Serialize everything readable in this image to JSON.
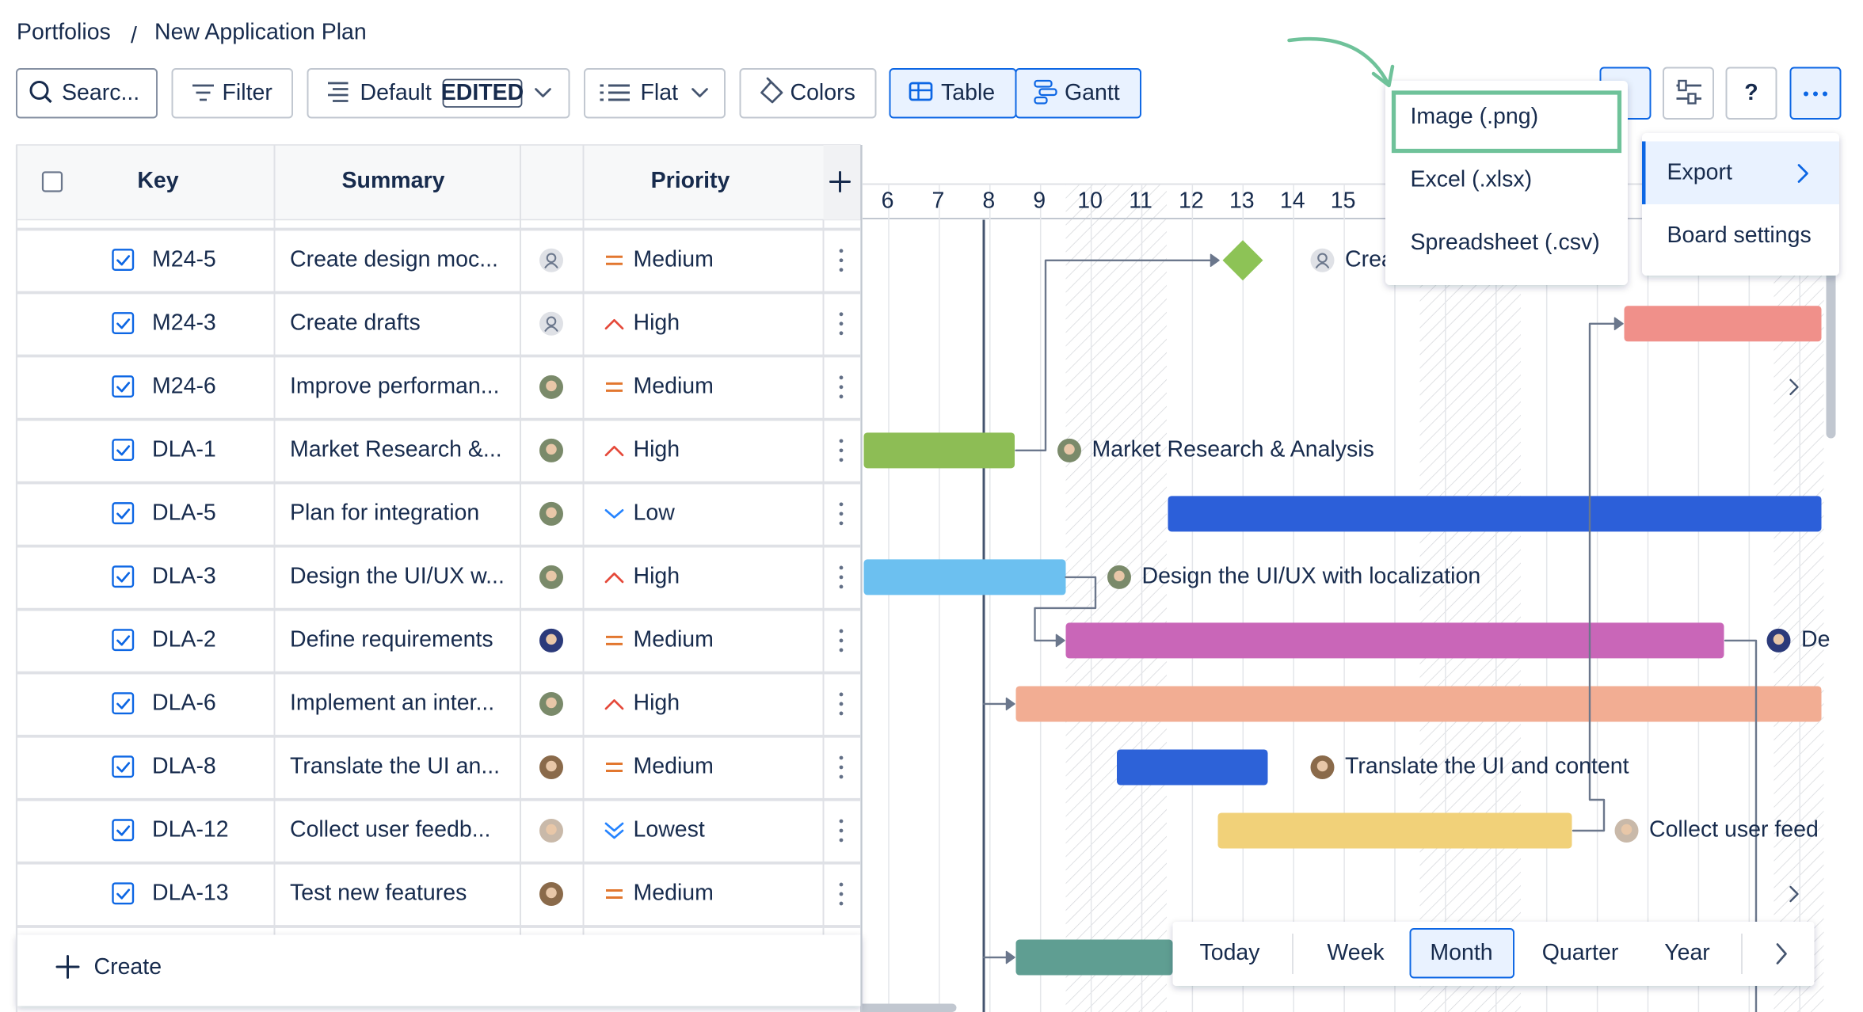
{
  "breadcrumb": {
    "items": [
      "Portfolios",
      "New Application Plan"
    ]
  },
  "toolbar": {
    "search": "Searc...",
    "filter": "Filter",
    "view": "Default",
    "view_badge": "EDITED",
    "grouping": "Flat",
    "colors": "Colors",
    "tabs": [
      "Table",
      "Gantt"
    ],
    "help": "?"
  },
  "table": {
    "columns": [
      "Key",
      "Summary",
      "Priority"
    ],
    "rows": [
      {
        "key": "M24-5",
        "summary": "Create design moc...",
        "priority": "Medium"
      },
      {
        "key": "M24-3",
        "summary": "Create drafts",
        "priority": "High"
      },
      {
        "key": "M24-6",
        "summary": "Improve performan...",
        "priority": "Medium"
      },
      {
        "key": "DLA-1",
        "summary": "Market Research &...",
        "priority": "High"
      },
      {
        "key": "DLA-5",
        "summary": "Plan for integration",
        "priority": "Low"
      },
      {
        "key": "DLA-3",
        "summary": "Design the UI/UX w...",
        "priority": "High"
      },
      {
        "key": "DLA-2",
        "summary": "Define requirements",
        "priority": "Medium"
      },
      {
        "key": "DLA-6",
        "summary": "Implement an inter...",
        "priority": "High"
      },
      {
        "key": "DLA-8",
        "summary": "Translate the UI an...",
        "priority": "Medium"
      },
      {
        "key": "DLA-12",
        "summary": "Collect user feedb...",
        "priority": "Lowest"
      },
      {
        "key": "DLA-13",
        "summary": "Test new features",
        "priority": "Medium"
      }
    ],
    "create": "Create"
  },
  "timeline": {
    "days": [
      6,
      7,
      8,
      9,
      10,
      11,
      12,
      13,
      14,
      15
    ]
  },
  "gantt_labels": [
    "Crea",
    "Market Research & Analysis",
    "Design the UI/UX with localization",
    "De",
    "Translate the UI and content",
    "Collect user feed"
  ],
  "export_menu": {
    "items": [
      "Image (.png)",
      "Excel (.xlsx)",
      "Spreadsheet (.csv)"
    ]
  },
  "side_menu": {
    "items": [
      "Export",
      "Board settings"
    ]
  },
  "zoom": {
    "options": [
      "Today",
      "Week",
      "Month",
      "Quarter",
      "Year"
    ],
    "selected": "Month"
  }
}
